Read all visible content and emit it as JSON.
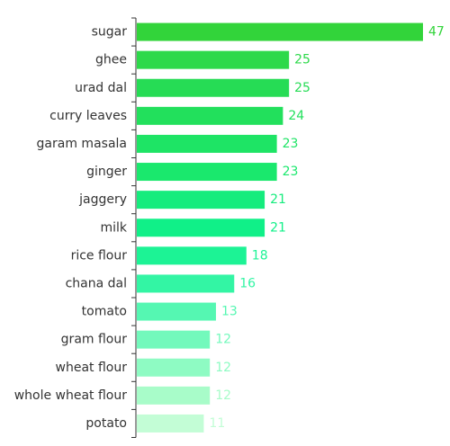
{
  "chart_data": {
    "type": "bar",
    "orientation": "horizontal",
    "categories": [
      "sugar",
      "ghee",
      "urad dal",
      "curry leaves",
      "garam masala",
      "ginger",
      "jaggery",
      "milk",
      "rice flour",
      "chana dal",
      "tomato",
      "gram flour",
      "wheat flour",
      "whole wheat flour",
      "potato"
    ],
    "values": [
      47,
      25,
      25,
      24,
      23,
      23,
      21,
      21,
      18,
      16,
      13,
      12,
      12,
      12,
      11
    ],
    "colors": [
      "#32d43a",
      "#2dd94a",
      "#26dc55",
      "#22e05c",
      "#1ee465",
      "#1ae86d",
      "#15ec7d",
      "#10f088",
      "#1cf395",
      "#33f5a4",
      "#55f7b2",
      "#73f9bc",
      "#8efbc3",
      "#a8fcc9",
      "#c3fdd6"
    ],
    "xlim": [
      0,
      47
    ],
    "grid": false,
    "legend": "none",
    "title": "",
    "xlabel": "",
    "ylabel": ""
  }
}
